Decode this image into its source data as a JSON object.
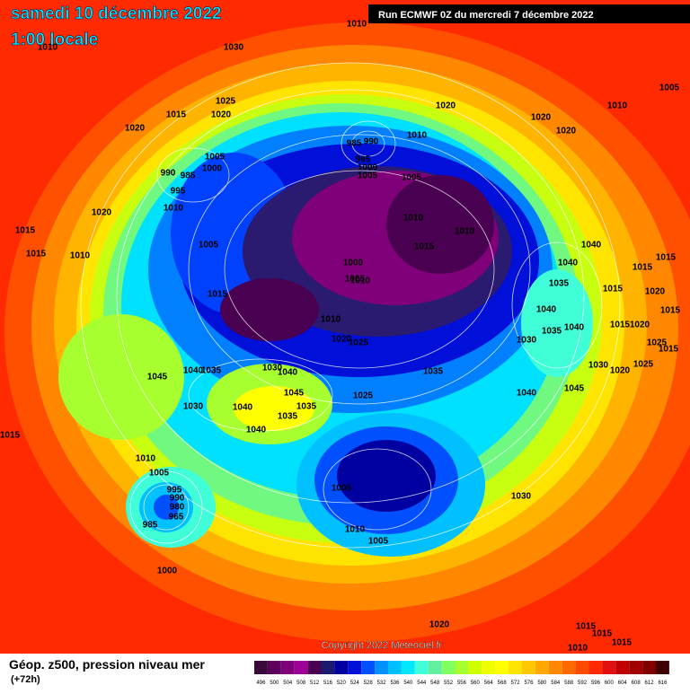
{
  "header": {
    "title": "samedi 10 décembre 2022",
    "subtitle": "1:00 locale",
    "run": "Run ECMWF 0Z du mercredi 7 décembre 2022"
  },
  "map": {
    "copyright": "Copyright 2022 Meteociel.fr",
    "isobar_labels": [
      "1010",
      "1030",
      "1010",
      "1025",
      "1015",
      "1020",
      "1020",
      "985",
      "990",
      "995",
      "1000",
      "1005",
      "1010",
      "1020",
      "1020",
      "1020",
      "1010",
      "1005",
      "1005",
      "1000",
      "990",
      "985",
      "995",
      "1010",
      "1020",
      "1005",
      "1010",
      "1010",
      "1015",
      "1005",
      "1015",
      "1015",
      "1010",
      "1000",
      "1005",
      "1010",
      "1015",
      "1040",
      "1040",
      "1015",
      "1015",
      "1035",
      "1015",
      "1020",
      "1015",
      "1040",
      "1035",
      "1040",
      "1015",
      "1020",
      "1010",
      "1020",
      "1025",
      "1030",
      "1025",
      "1030",
      "1020",
      "1025",
      "1015",
      "1045",
      "1040",
      "1035",
      "1030",
      "1040",
      "1035",
      "1025",
      "1045",
      "1040",
      "1045",
      "1030",
      "1040",
      "1035",
      "1035",
      "1040",
      "1015",
      "1010",
      "1005",
      "995",
      "990",
      "980",
      "965",
      "985",
      "1005",
      "1030",
      "1010",
      "1005",
      "1000",
      "1020",
      "1015",
      "1015",
      "1010",
      "1015"
    ]
  },
  "legend": {
    "title": "Géop. z500, pression niveau mer",
    "lead": "(+72h)",
    "steps": [
      {
        "value": 496,
        "color": "#3a0a3a"
      },
      {
        "value": 500,
        "color": "#5c005c"
      },
      {
        "value": 504,
        "color": "#80007a"
      },
      {
        "value": 508,
        "color": "#a0009a"
      },
      {
        "value": 512,
        "color": "#4a0050"
      },
      {
        "value": 516,
        "color": "#1a1a70"
      },
      {
        "value": 520,
        "color": "#0000a0"
      },
      {
        "value": 524,
        "color": "#0010d8"
      },
      {
        "value": 528,
        "color": "#0050ff"
      },
      {
        "value": 532,
        "color": "#0090ff"
      },
      {
        "value": 536,
        "color": "#00c0ff"
      },
      {
        "value": 540,
        "color": "#00e8ff"
      },
      {
        "value": 544,
        "color": "#40ffd8"
      },
      {
        "value": 548,
        "color": "#60f0a0"
      },
      {
        "value": 552,
        "color": "#80ff60"
      },
      {
        "value": 556,
        "color": "#a8ff30"
      },
      {
        "value": 560,
        "color": "#d0ff00"
      },
      {
        "value": 564,
        "color": "#f0ff00"
      },
      {
        "value": 568,
        "color": "#ffff00"
      },
      {
        "value": 572,
        "color": "#ffe400"
      },
      {
        "value": 576,
        "color": "#ffc800"
      },
      {
        "value": 580,
        "color": "#ffa800"
      },
      {
        "value": 584,
        "color": "#ff8800"
      },
      {
        "value": 588,
        "color": "#ff6a00"
      },
      {
        "value": 592,
        "color": "#ff4a00"
      },
      {
        "value": 596,
        "color": "#ff2a00"
      },
      {
        "value": 600,
        "color": "#e01010"
      },
      {
        "value": 604,
        "color": "#c00000"
      },
      {
        "value": 608,
        "color": "#a00000"
      },
      {
        "value": 612,
        "color": "#800000"
      },
      {
        "value": 616,
        "color": "#400000"
      }
    ]
  }
}
